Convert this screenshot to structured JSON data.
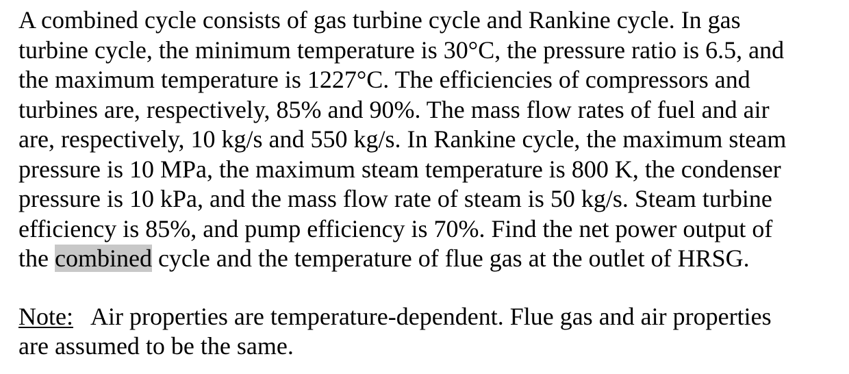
{
  "problem": {
    "lines": [
      "A combined cycle consists of gas turbine cycle and Rankine cycle. In gas",
      "turbine cycle, the minimum temperature is 30°C, the pressure ratio is 6.5, and",
      "the maximum temperature is 1227°C. The efficiencies of compressors and",
      "turbines are, respectively, 85% and 90%. The mass flow rates of fuel and air",
      "are, respectively, 10 kg/s and 550 kg/s. In Rankine cycle, the maximum steam",
      "pressure is 10 MPa, the maximum steam temperature is 800 K, the condenser",
      "pressure is 10 kPa, and the mass flow rate of steam is 50 kg/s. Steam turbine",
      "efficiency is 85%, and pump efficiency is 70%. Find the net power output of"
    ],
    "last_line": {
      "before": "the ",
      "highlighted": "combined",
      "after": " cycle and the temperature of flue gas at the outlet of HRSG."
    }
  },
  "note": {
    "label": "Note:",
    "line1": "   Air properties are temperature-dependent. Flue gas and air properties",
    "line2": "are assumed to be the same."
  }
}
